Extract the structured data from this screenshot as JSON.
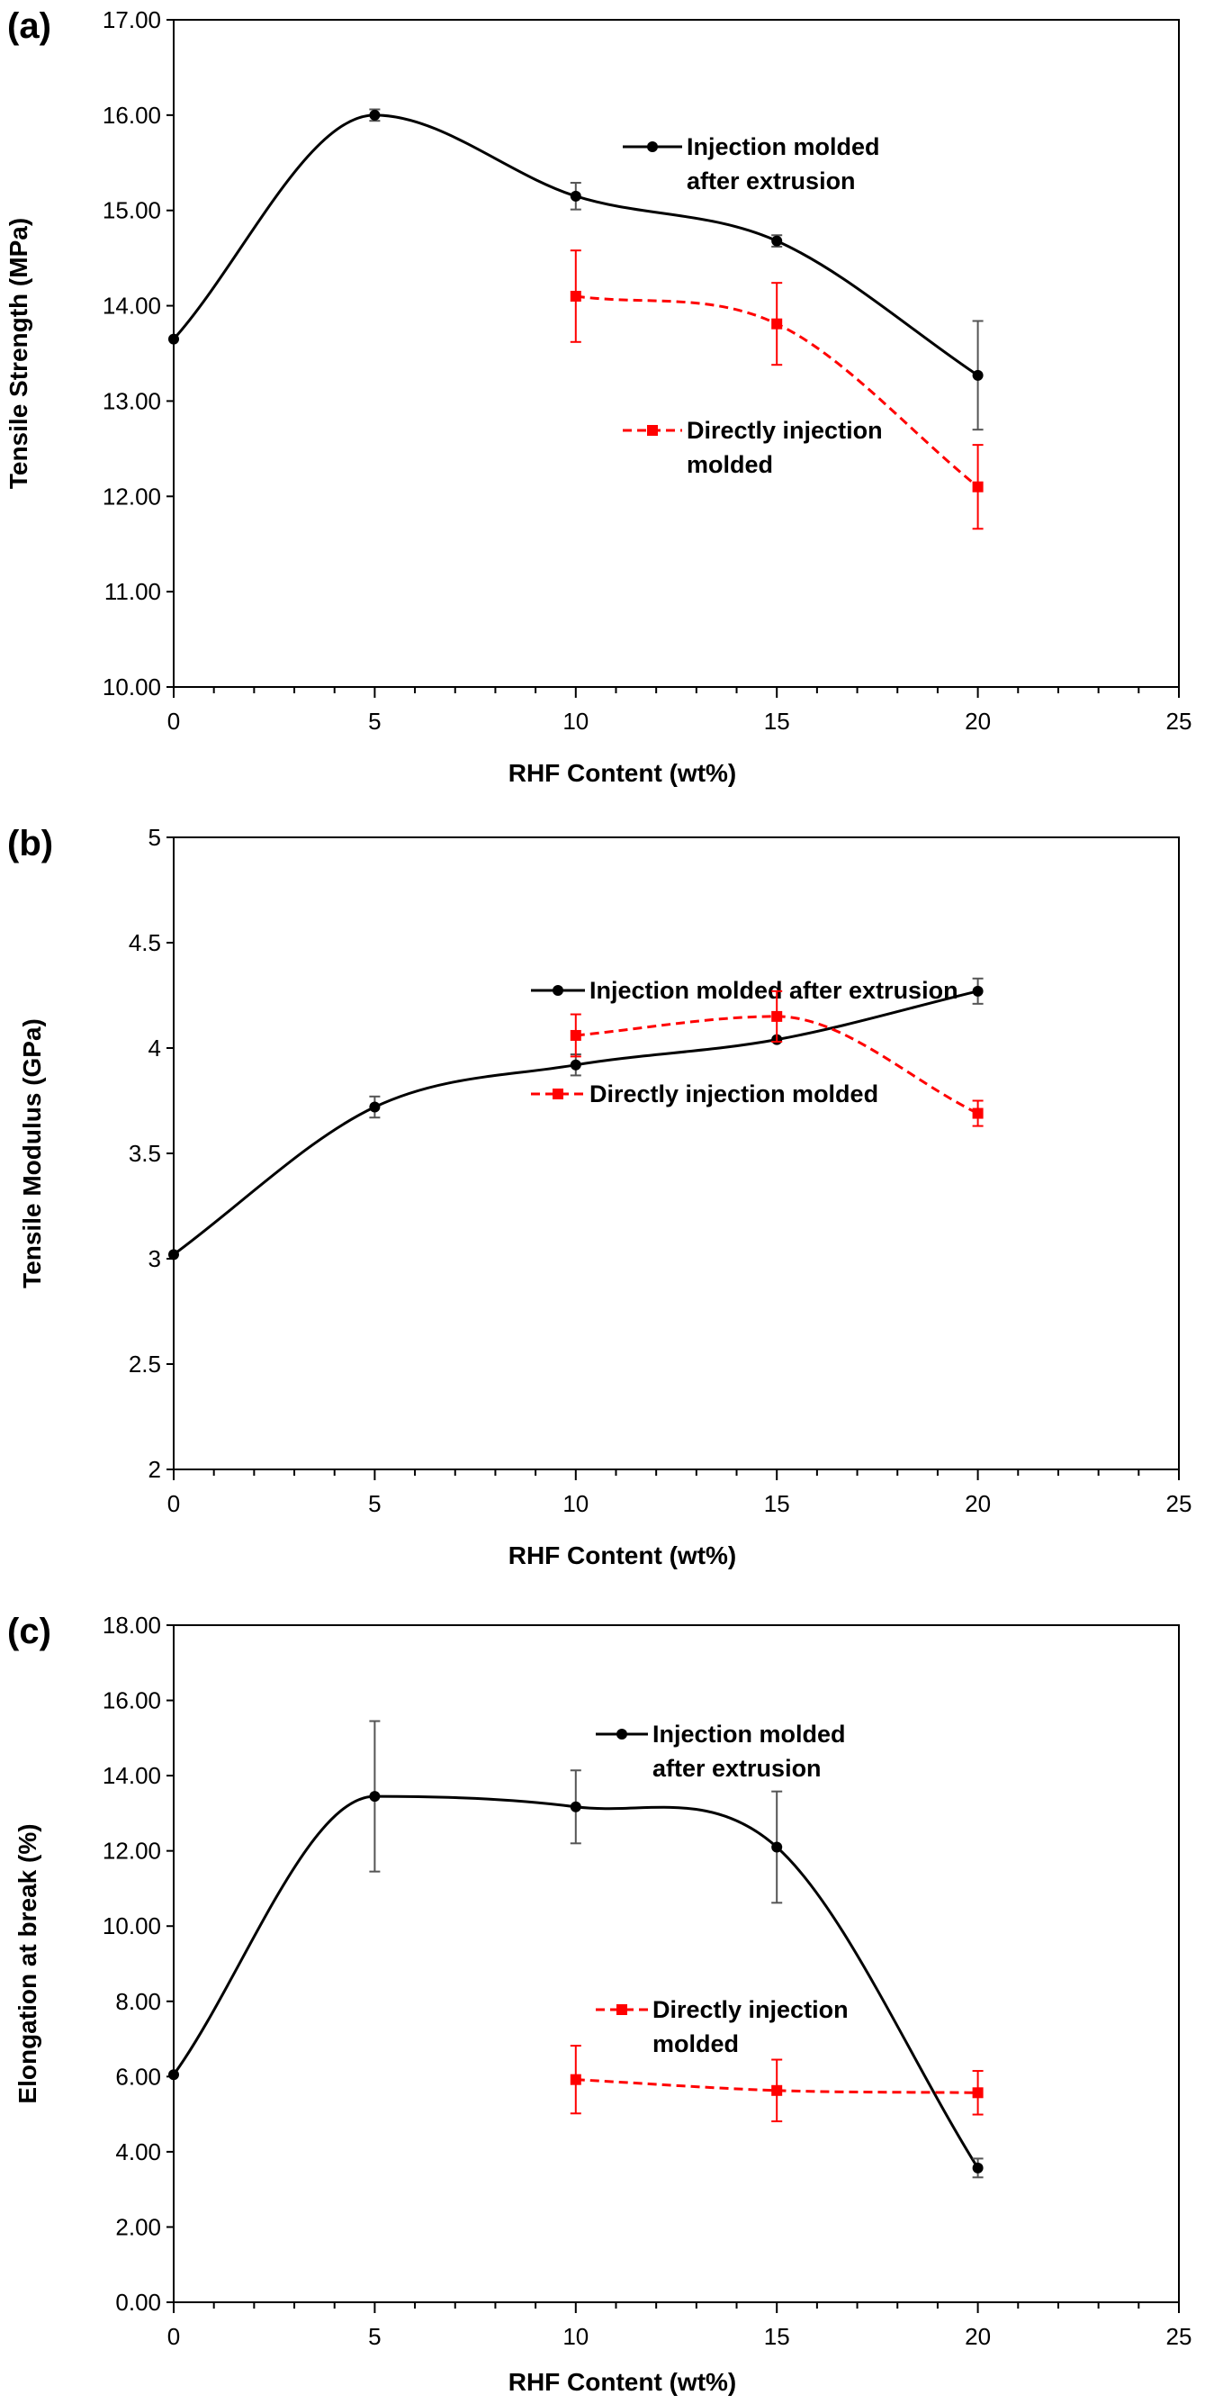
{
  "chart_data": [
    {
      "type": "line",
      "panel_label": "(a)",
      "xlabel": "RHF Content (wt%)",
      "ylabel": "Tensile Strength (MPa)",
      "xlim": [
        0,
        25
      ],
      "ylim": [
        10,
        17
      ],
      "xticks": [
        0,
        5,
        10,
        15,
        20,
        25
      ],
      "xtick_labels": [
        "0",
        "5",
        "10",
        "15",
        "20",
        "25"
      ],
      "yticks": [
        10,
        11,
        12,
        13,
        14,
        15,
        16,
        17
      ],
      "ytick_labels": [
        "10.00",
        "11.00",
        "12.00",
        "13.00",
        "14.00",
        "15.00",
        "16.00",
        "17.00"
      ],
      "grid": false,
      "legend_position": "right",
      "series": [
        {
          "name": "Injection molded after extrusion",
          "legend_lines": [
            "Injection molded",
            "after extrusion"
          ],
          "color": "#000000",
          "line_style": "solid",
          "marker": "circle",
          "x": [
            0,
            5,
            10,
            15,
            20
          ],
          "y": [
            13.65,
            16.0,
            15.15,
            14.68,
            13.27
          ],
          "error": [
            0.0,
            0.06,
            0.14,
            0.06,
            0.57
          ]
        },
        {
          "name": "Directly injection molded",
          "legend_lines": [
            "Directly injection",
            "molded"
          ],
          "color": "#ff0000",
          "line_style": "dashed",
          "marker": "square",
          "x": [
            10,
            15,
            20
          ],
          "y": [
            14.1,
            13.81,
            12.1
          ],
          "error": [
            0.48,
            0.43,
            0.44
          ]
        }
      ]
    },
    {
      "type": "line",
      "panel_label": "(b)",
      "xlabel": "RHF Content (wt%)",
      "ylabel": "Tensile Modulus (GPa)",
      "xlim": [
        0,
        25
      ],
      "ylim": [
        2,
        5
      ],
      "xticks": [
        0,
        5,
        10,
        15,
        20,
        25
      ],
      "xtick_labels": [
        "0",
        "5",
        "10",
        "15",
        "20",
        "25"
      ],
      "yticks": [
        2,
        2.5,
        3,
        3.5,
        4,
        4.5,
        5
      ],
      "ytick_labels": [
        "2",
        "2.5",
        "3",
        "3.5",
        "4",
        "4.5",
        "5"
      ],
      "grid": false,
      "legend_position": "right",
      "series": [
        {
          "name": "Injection molded after extrusion",
          "legend_lines": [
            "Injection molded after extrusion"
          ],
          "color": "#000000",
          "line_style": "solid",
          "marker": "circle",
          "x": [
            0,
            5,
            10,
            15,
            20
          ],
          "y": [
            3.02,
            3.72,
            3.92,
            4.04,
            4.27
          ],
          "error": [
            0.0,
            0.05,
            0.05,
            0.0,
            0.06
          ]
        },
        {
          "name": "Directly injection molded",
          "legend_lines": [
            "Directly injection molded"
          ],
          "color": "#ff0000",
          "line_style": "dashed",
          "marker": "square",
          "x": [
            10,
            15,
            20
          ],
          "y": [
            4.06,
            4.15,
            3.69
          ],
          "error": [
            0.1,
            0.12,
            0.06
          ]
        }
      ]
    },
    {
      "type": "line",
      "panel_label": "(c)",
      "xlabel": "RHF Content (wt%)",
      "ylabel": "Elongation at break (%)",
      "xlim": [
        0,
        25
      ],
      "ylim": [
        0,
        18
      ],
      "xticks": [
        0,
        5,
        10,
        15,
        20,
        25
      ],
      "xtick_labels": [
        "0",
        "5",
        "10",
        "15",
        "20",
        "25"
      ],
      "yticks": [
        0,
        2,
        4,
        6,
        8,
        10,
        12,
        14,
        16,
        18
      ],
      "ytick_labels": [
        "0.00",
        "2.00",
        "4.00",
        "6.00",
        "8.00",
        "10.00",
        "12.00",
        "14.00",
        "16.00",
        "18.00"
      ],
      "grid": false,
      "legend_position": "right",
      "series": [
        {
          "name": "Injection molded after extrusion",
          "legend_lines": [
            "Injection molded",
            "after extrusion"
          ],
          "color": "#000000",
          "line_style": "solid",
          "marker": "circle",
          "x": [
            0,
            5,
            10,
            15,
            20
          ],
          "y": [
            6.05,
            13.45,
            13.17,
            12.1,
            3.57
          ],
          "error": [
            0.0,
            2.0,
            0.97,
            1.48,
            0.25
          ]
        },
        {
          "name": "Directly injection molded",
          "legend_lines": [
            "Directly injection",
            "molded"
          ],
          "color": "#ff0000",
          "line_style": "dashed",
          "marker": "square",
          "x": [
            10,
            15,
            20
          ],
          "y": [
            5.92,
            5.63,
            5.57
          ],
          "error": [
            0.9,
            0.82,
            0.58
          ]
        }
      ]
    }
  ]
}
